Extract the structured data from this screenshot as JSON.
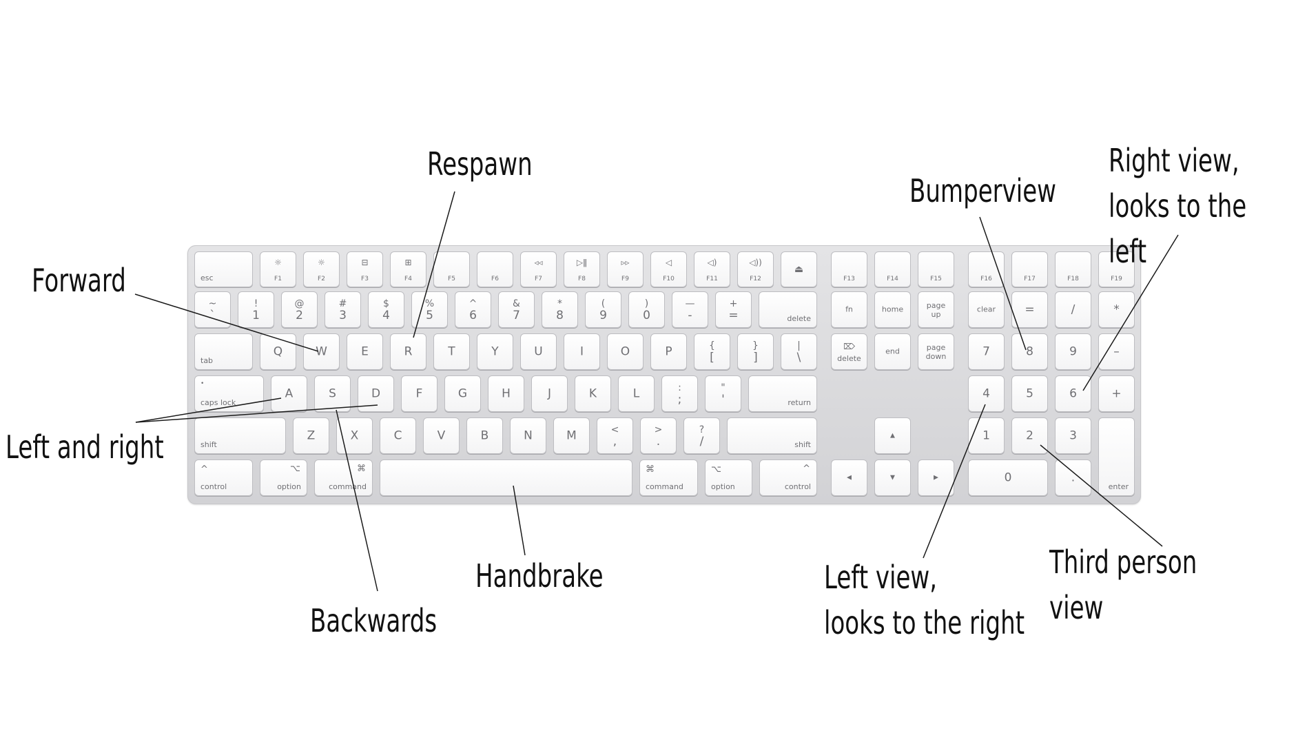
{
  "labels": {
    "respawn": "Respawn",
    "bumperview": "Bumperview",
    "right_view": "Right view,\nlooks to the left",
    "forward": "Forward",
    "left_and_right": "Left and right",
    "handbrake": "Handbrake",
    "backwards": "Backwards",
    "left_view": "Left view,\nlooks to the right",
    "third_person": "Third person view"
  },
  "keys": {
    "esc": "esc",
    "f1": "F1",
    "f2": "F2",
    "f3": "F3",
    "f4": "F4",
    "f5": "F5",
    "f6": "F6",
    "f7": "F7",
    "f8": "F8",
    "f9": "F9",
    "f10": "F10",
    "f11": "F11",
    "f12": "F12",
    "f13": "F13",
    "f14": "F14",
    "f15": "F15",
    "f16": "F16",
    "f17": "F17",
    "f18": "F18",
    "f19": "F19",
    "eject_icon": "⏏",
    "f1_icon": "☼",
    "f2_icon": "☼",
    "f3_icon": "⊟",
    "f4_icon": "⊞",
    "f7_icon": "◃◃",
    "f8_icon": "▷ǁ",
    "f9_icon": "▹▹",
    "f10_icon": "◁",
    "f11_icon": "◁)",
    "f12_icon": "◁))",
    "tilde_top": "~",
    "tilde_bot": "`",
    "n1_top": "!",
    "n1": "1",
    "n2_top": "@",
    "n2": "2",
    "n3_top": "#",
    "n3": "3",
    "n4_top": "$",
    "n4": "4",
    "n5_top": "%",
    "n5": "5",
    "n6_top": "^",
    "n6": "6",
    "n7_top": "&",
    "n7": "7",
    "n8_top": "*",
    "n8": "8",
    "n9_top": "(",
    "n9": "9",
    "n0_top": ")",
    "n0": "0",
    "minus_top": "—",
    "minus_bot": "-",
    "plus_top": "+",
    "plus_bot": "=",
    "delete": "delete",
    "fn": "fn",
    "home": "home",
    "page_up": "page\nup",
    "clear": "clear",
    "np_eq": "=",
    "np_div": "/",
    "np_mul": "*",
    "tab": "tab",
    "q": "Q",
    "w": "W",
    "e": "E",
    "r": "R",
    "t": "T",
    "y": "Y",
    "u": "U",
    "i": "I",
    "o": "O",
    "p": "P",
    "lbrace_top": "{",
    "lbrace_bot": "[",
    "rbrace_top": "}",
    "rbrace_bot": "]",
    "pipe_top": "|",
    "pipe_bot": "\\",
    "fwd_delete": "delete",
    "fwd_delete_icon": "⌦",
    "end": "end",
    "page_down": "page\ndown",
    "np7": "7",
    "np8": "8",
    "np9": "9",
    "np_minus": "–",
    "caps_lock": "caps lock",
    "caps_dot": "•",
    "a": "A",
    "s": "S",
    "d": "D",
    "f": "F",
    "g": "G",
    "h": "H",
    "j": "J",
    "k": "K",
    "l": "L",
    "semi_top": ":",
    "semi_bot": ";",
    "quote_top": "\"",
    "quote_bot": "'",
    "return": "return",
    "np4": "4",
    "np5": "5",
    "np6": "6",
    "np_plus": "+",
    "shift": "shift",
    "z": "Z",
    "x": "X",
    "c": "C",
    "v": "V",
    "b": "B",
    "n": "N",
    "m": "M",
    "comma_top": "<",
    "comma_bot": ",",
    "period_top": ">",
    "period_bot": ".",
    "slash_top": "?",
    "slash_bot": "/",
    "arrow_up": "▲",
    "np1": "1",
    "np2": "2",
    "np3": "3",
    "control": "control",
    "control_icon": "^",
    "option": "option",
    "option_icon": "⌥",
    "command": "command",
    "command_icon": "⌘",
    "arrow_left": "◀",
    "arrow_down": "▼",
    "arrow_right": "▶",
    "np0": "0",
    "np_dot": ".",
    "enter": "enter"
  }
}
